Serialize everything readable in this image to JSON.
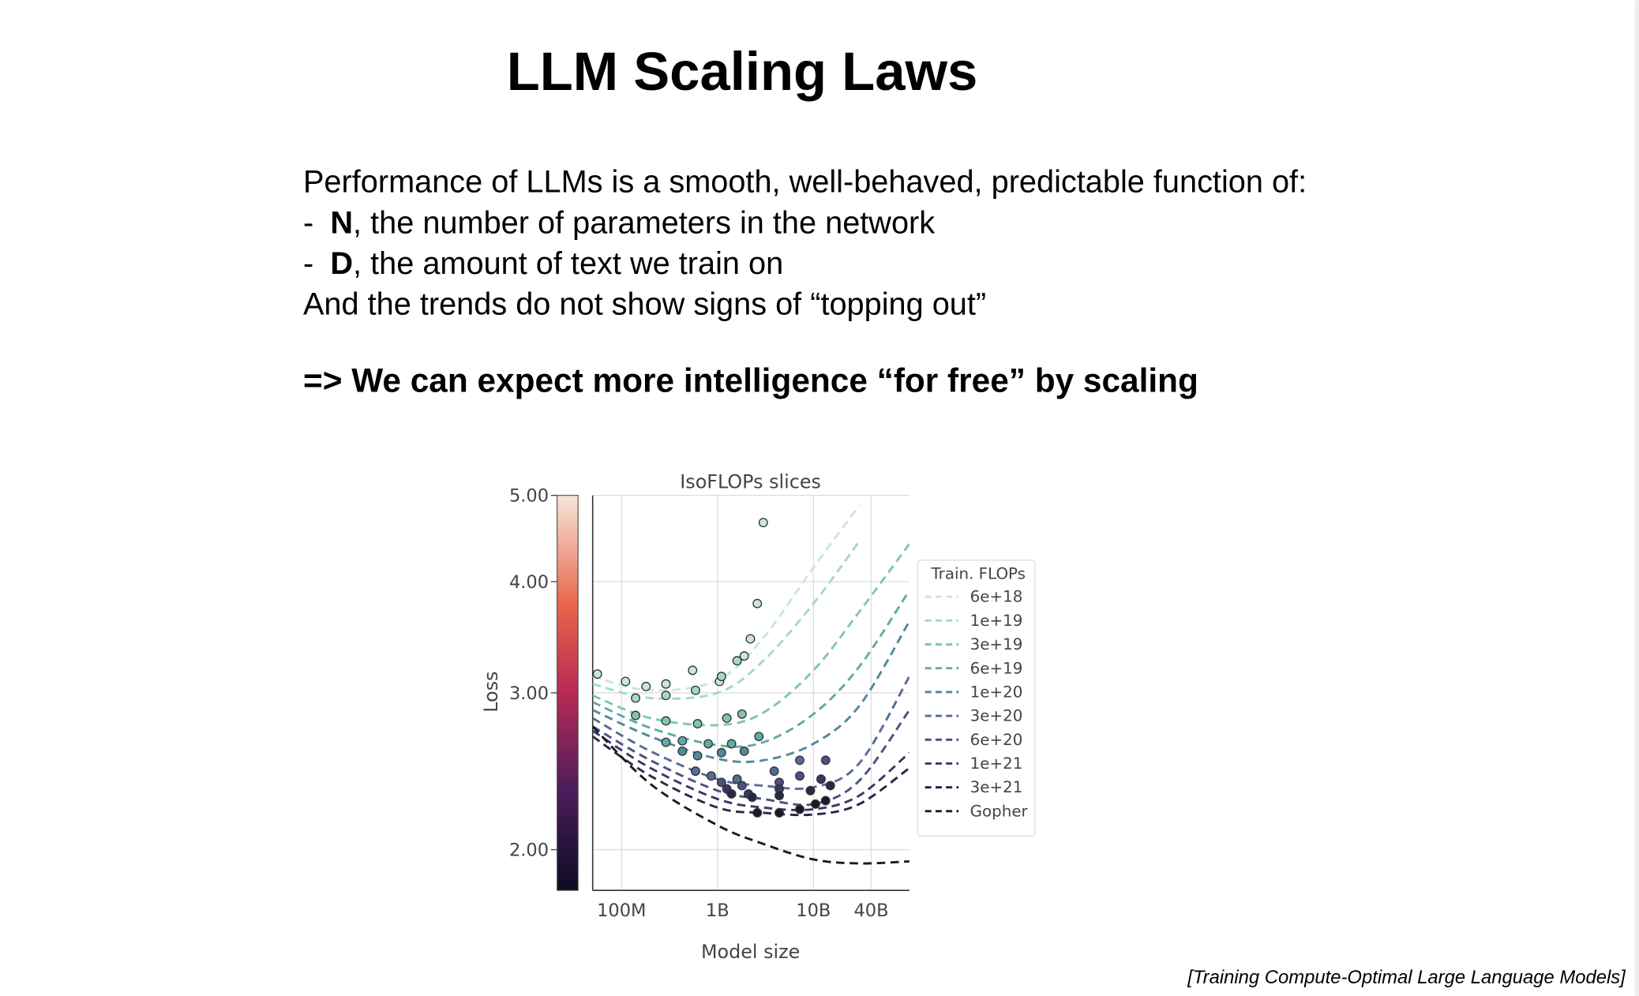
{
  "slide": {
    "title": "LLM Scaling Laws",
    "intro": "Performance of LLMs is a smooth, well-behaved, predictable function of:",
    "bullets": [
      {
        "marker": "-",
        "key": "N",
        "text": ", the number of parameters in the network"
      },
      {
        "marker": "-",
        "key": "D",
        "text": ", the amount of text we train on"
      }
    ],
    "closing": "And the trends do not show signs of “topping out”",
    "conclusion": "=> We can expect more intelligence “for free” by scaling",
    "citation": "[Training Compute-Optimal Large Language Models]"
  },
  "chart_data": {
    "type": "line",
    "title": "IsoFLOPs slices",
    "x_label": "Model size",
    "y_label": "Loss",
    "legend_title": "Train. FLOPs",
    "legend": "outside-right",
    "xscale": "log",
    "yscale": "log",
    "grid": true,
    "colorbar": true,
    "xlim": [
      50000000,
      100000000000
    ],
    "ylim": [
      1.8,
      5
    ],
    "xticks": [
      {
        "value": 100000000,
        "label": "100M"
      },
      {
        "value": 1000000000,
        "label": "1B"
      },
      {
        "value": 10000000000,
        "label": "10B"
      },
      {
        "value": 40000000000,
        "label": "40B"
      }
    ],
    "yticks": [
      {
        "value": 2,
        "label": "2.00"
      },
      {
        "value": 3,
        "label": "3.00"
      },
      {
        "value": 4,
        "label": "4.00"
      },
      {
        "value": 5,
        "label": "5.00"
      }
    ],
    "series": [
      {
        "name": "6e+18",
        "color": "#c9e7dc",
        "x": [
          50000000,
          200000000,
          1000000000,
          3000000000,
          10000000000,
          30000000000
        ],
        "values": [
          3.13,
          3.02,
          3.1,
          3.46,
          4.15,
          4.87
        ],
        "scatter_x": [
          56000000,
          110000000,
          180000000,
          290000000,
          550000000,
          1050000000,
          1900000000,
          2200000000,
          2600000000,
          3000000000
        ],
        "scatter_values": [
          3.15,
          3.09,
          3.05,
          3.07,
          3.18,
          3.09,
          3.3,
          3.45,
          3.78,
          4.66
        ]
      },
      {
        "name": "1e+19",
        "color": "#a3dac6",
        "x": [
          50000000,
          200000000,
          1000000000,
          3000000000,
          10000000000,
          30000000000
        ],
        "values": [
          3.07,
          2.96,
          3.0,
          3.26,
          3.78,
          4.44
        ],
        "scatter_x": [
          140000000,
          290000000,
          590000000,
          1100000000,
          1600000000
        ],
        "scatter_values": [
          2.96,
          2.98,
          3.02,
          3.13,
          3.26
        ]
      },
      {
        "name": "3e+19",
        "color": "#80c6b1",
        "x": [
          50000000,
          200000000,
          1000000000,
          3000000000,
          10000000000,
          30000000000,
          100000000000
        ],
        "values": [
          2.98,
          2.81,
          2.76,
          2.85,
          3.18,
          3.7,
          4.41
        ],
        "scatter_x": [
          140000000,
          290000000,
          620000000,
          1250000000,
          1800000000
        ],
        "scatter_values": [
          2.83,
          2.79,
          2.77,
          2.81,
          2.84
        ]
      },
      {
        "name": "6e+19",
        "color": "#62aaa5",
        "x": [
          50000000,
          200000000,
          1000000000,
          3000000000,
          10000000000,
          30000000000,
          100000000000
        ],
        "values": [
          2.93,
          2.74,
          2.62,
          2.64,
          2.84,
          3.21,
          3.91
        ],
        "scatter_x": [
          290000000,
          430000000,
          800000000,
          1400000000,
          2700000000
        ],
        "scatter_values": [
          2.64,
          2.65,
          2.63,
          2.63,
          2.68
        ]
      },
      {
        "name": "1e+20",
        "color": "#4f8b9b",
        "x": [
          50000000,
          200000000,
          1000000000,
          3000000000,
          10000000000,
          30000000000,
          100000000000
        ],
        "values": [
          2.87,
          2.68,
          2.53,
          2.52,
          2.63,
          2.9,
          3.61
        ],
        "scatter_x": [
          430000000,
          620000000,
          1100000000,
          1900000000
        ],
        "scatter_values": [
          2.58,
          2.55,
          2.57,
          2.58
        ]
      },
      {
        "name": "3e+20",
        "color": "#566c95",
        "x": [
          50000000,
          200000000,
          1000000000,
          3000000000,
          10000000000,
          30000000000,
          100000000000
        ],
        "values": [
          2.81,
          2.58,
          2.4,
          2.36,
          2.35,
          2.5,
          3.13
        ],
        "scatter_x": [
          590000000,
          860000000,
          1600000000,
          3900000000,
          7200000000
        ],
        "scatter_values": [
          2.45,
          2.42,
          2.4,
          2.45,
          2.52
        ]
      },
      {
        "name": "6e+20",
        "color": "#4f4f82",
        "x": [
          50000000,
          200000000,
          1000000000,
          3000000000,
          10000000000,
          30000000000,
          100000000000
        ],
        "values": [
          2.75,
          2.52,
          2.33,
          2.28,
          2.25,
          2.39,
          2.87
        ],
        "scatter_x": [
          1100000000,
          1800000000,
          4400000000,
          7200000000,
          13400000000
        ],
        "scatter_values": [
          2.38,
          2.36,
          2.38,
          2.42,
          2.52
        ]
      },
      {
        "name": "1e+21",
        "color": "#3a3768",
        "x": [
          50000000,
          200000000,
          1000000000,
          3000000000,
          10000000000,
          30000000000,
          100000000000
        ],
        "values": [
          2.72,
          2.47,
          2.28,
          2.23,
          2.22,
          2.3,
          2.57
        ],
        "scatter_x": [
          1250000000,
          2100000000,
          4400000000,
          12000000000
        ],
        "scatter_values": [
          2.34,
          2.31,
          2.34,
          2.4
        ]
      },
      {
        "name": "3e+21",
        "color": "#2a2646",
        "x": [
          50000000,
          200000000,
          1000000000,
          3000000000,
          10000000000,
          30000000000,
          100000000000
        ],
        "values": [
          2.68,
          2.42,
          2.23,
          2.2,
          2.19,
          2.25,
          2.47
        ],
        "scatter_x": [
          1400000000,
          2300000000,
          4400000000,
          9300000000,
          15000000000
        ],
        "scatter_values": [
          2.31,
          2.29,
          2.3,
          2.33,
          2.36
        ]
      },
      {
        "name": "Gopher",
        "color": "#1b1a24",
        "x": [
          50000000,
          200000000,
          1000000000,
          3000000000,
          10000000000,
          30000000000,
          100000000000
        ],
        "values": [
          2.75,
          2.37,
          2.13,
          2.03,
          1.95,
          1.93,
          1.94
        ],
        "scatter_x": [
          2600000000,
          4400000000,
          7200000000,
          10500000000,
          13400000000
        ],
        "scatter_values": [
          2.2,
          2.2,
          2.22,
          2.25,
          2.27
        ]
      }
    ]
  }
}
